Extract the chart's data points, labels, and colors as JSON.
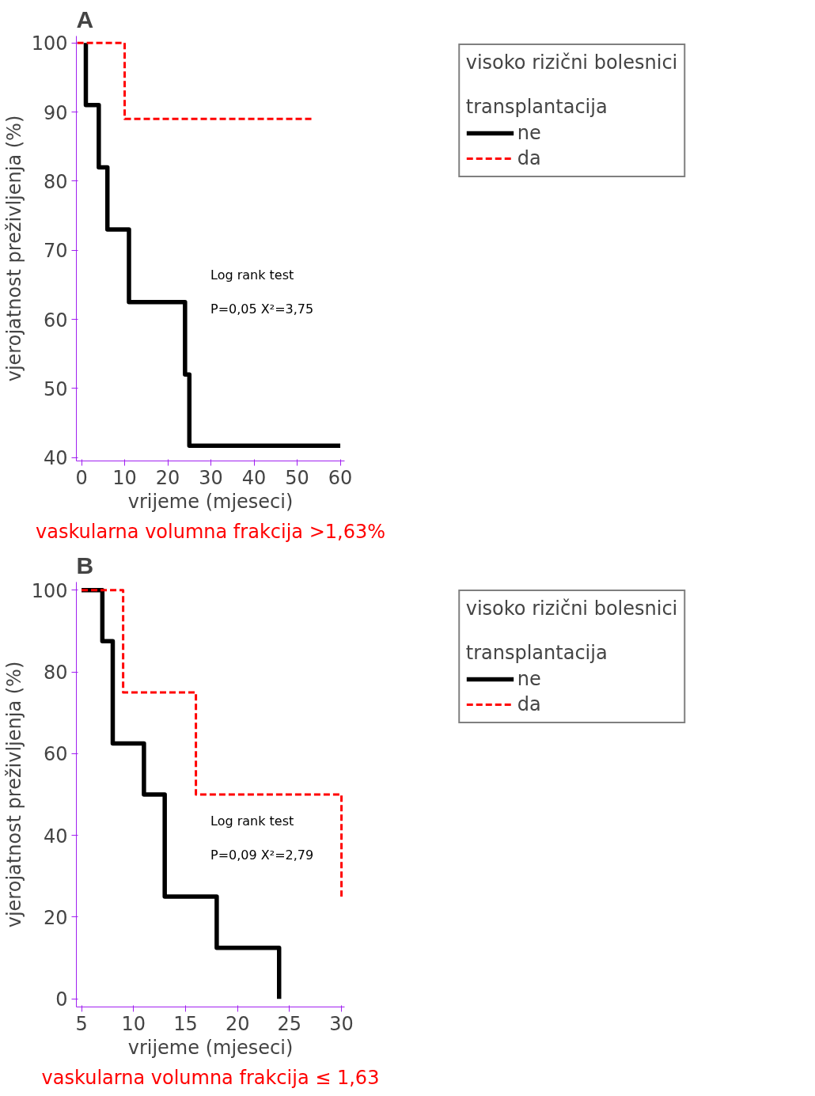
{
  "chart_data": [
    {
      "type": "step",
      "title": "A",
      "subtitle": "vaskularna volumna frakcija >1,63%",
      "xlabel": "vrijeme (mjeseci)",
      "ylabel": "vjerojatnost preživljenja (%)",
      "legend_title": "visoko rizični bolesnici\n\ntransplantacija",
      "legend": "top right",
      "xlim": [
        -1.2,
        61
      ],
      "ylim": [
        39.5,
        101
      ],
      "xticks": [
        0,
        10,
        20,
        30,
        40,
        50,
        60
      ],
      "yticks": [
        40,
        50,
        60,
        70,
        80,
        90,
        100
      ],
      "grid": false,
      "annotations": [
        "Log rank test",
        "P=0,05    X²=3,75"
      ],
      "series": [
        {
          "name": "ne",
          "color": "#000000",
          "line_style": "solid",
          "x": [
            1,
            1,
            4,
            6,
            11,
            24,
            25,
            60
          ],
          "values": [
            100,
            91,
            82,
            73,
            62.5,
            52,
            41.7,
            41.7
          ]
        },
        {
          "name": "da",
          "color": "#ff0000",
          "line_style": "dashed",
          "x": [
            -1,
            10,
            54
          ],
          "values": [
            100,
            89,
            89
          ]
        }
      ]
    },
    {
      "type": "step",
      "title": "B",
      "subtitle": "vaskularna volumna frakcija ≤ 1,63",
      "xlabel": "vrijeme (mjeseci)",
      "ylabel": "vjerojatnost preživljenja (%)",
      "legend_title": "visoko rizični bolesnici\n\ntransplantacija",
      "legend": "top right",
      "xlim": [
        4.5,
        30.3
      ],
      "ylim": [
        -2,
        102
      ],
      "xticks": [
        5,
        10,
        15,
        20,
        25,
        30
      ],
      "yticks": [
        0,
        20,
        40,
        60,
        80,
        100
      ],
      "grid": false,
      "annotations": [
        "Log rank test",
        "P=0,09    X²=2,79"
      ],
      "series": [
        {
          "name": "ne",
          "color": "#000000",
          "line_style": "solid",
          "x": [
            5,
            7,
            8,
            11,
            13,
            18,
            24
          ],
          "values": [
            100,
            87.5,
            62.5,
            50,
            25,
            12.5,
            0
          ]
        },
        {
          "name": "da",
          "color": "#ff0000",
          "line_style": "dashed",
          "x": [
            5,
            9,
            16,
            30,
            30
          ],
          "values": [
            100,
            75,
            50,
            50,
            25
          ]
        }
      ]
    }
  ]
}
